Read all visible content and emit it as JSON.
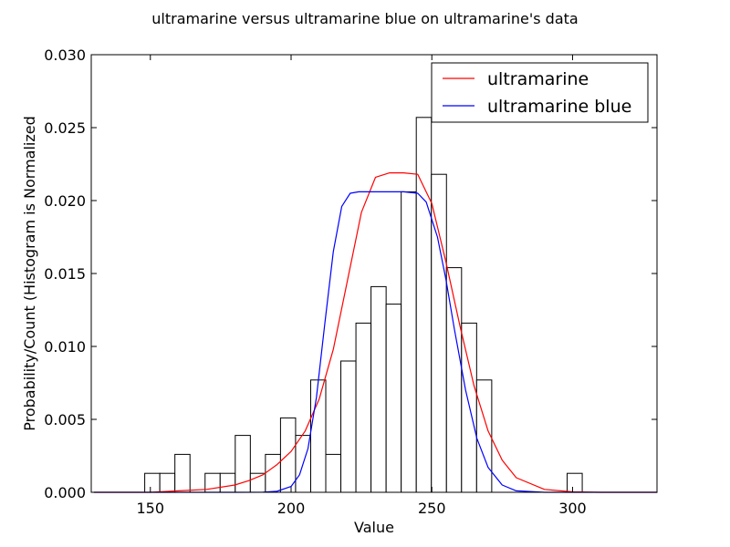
{
  "chart_data": {
    "type": "bar",
    "title": "ultramarine versus ultramarine blue on ultramarine's data",
    "xlabel": "Value",
    "ylabel": "Probability/Count (Histogram is Normalized",
    "xlim": [
      129,
      330
    ],
    "ylim": [
      0,
      0.03
    ],
    "x_ticks": [
      {
        "value": 150,
        "label": "150"
      },
      {
        "value": 200,
        "label": "200"
      },
      {
        "value": 250,
        "label": "250"
      },
      {
        "value": 300,
        "label": "300"
      }
    ],
    "y_ticks": [
      {
        "value": 0.0,
        "label": "0.000"
      },
      {
        "value": 0.005,
        "label": "0.005"
      },
      {
        "value": 0.01,
        "label": "0.010"
      },
      {
        "value": 0.015,
        "label": "0.015"
      },
      {
        "value": 0.02,
        "label": "0.020"
      },
      {
        "value": 0.025,
        "label": "0.025"
      },
      {
        "value": 0.03,
        "label": "0.030"
      }
    ],
    "histogram": {
      "bin_width": 5.36,
      "bin_edges_start": 148,
      "counts": [
        0.0013,
        0.0013,
        0.0026,
        0.0,
        0.0013,
        0.0013,
        0.0039,
        0.0013,
        0.0026,
        0.0051,
        0.0039,
        0.0077,
        0.0026,
        0.009,
        0.0116,
        0.0141,
        0.0129,
        0.0206,
        0.0257,
        0.0218,
        0.0154,
        0.0116,
        0.0077,
        0.0,
        0.0,
        0.0,
        0.0,
        0.0,
        0.0013
      ]
    },
    "series": [
      {
        "name": "ultramarine",
        "color": "#ff0000",
        "x": [
          130,
          150,
          160,
          170,
          180,
          185,
          190,
          195,
          200,
          205,
          210,
          215,
          220,
          225,
          230,
          235,
          240,
          245,
          250,
          255,
          260,
          265,
          270,
          275,
          280,
          290,
          300,
          310,
          320,
          330
        ],
        "y": [
          0.0,
          0.0,
          0.0001,
          0.0002,
          0.0005,
          0.0008,
          0.0012,
          0.0019,
          0.0028,
          0.0042,
          0.0064,
          0.0098,
          0.0145,
          0.0192,
          0.0216,
          0.0219,
          0.0219,
          0.0218,
          0.0198,
          0.0158,
          0.0114,
          0.0073,
          0.0042,
          0.0022,
          0.001,
          0.0002,
          3e-05,
          0.0,
          0.0,
          0.0
        ]
      },
      {
        "name": "ultramarine blue",
        "color": "#0000ff",
        "x": [
          130,
          150,
          170,
          180,
          190,
          195,
          200,
          203,
          206,
          209,
          212,
          215,
          218,
          221,
          224,
          230,
          240,
          245,
          248,
          252,
          255,
          258,
          262,
          266,
          270,
          275,
          280,
          290,
          300,
          330
        ],
        "y": [
          0.0,
          0.0,
          0.0,
          0.0,
          1e-05,
          7e-05,
          0.0004,
          0.0012,
          0.003,
          0.0065,
          0.0116,
          0.0165,
          0.0196,
          0.0205,
          0.0206,
          0.0206,
          0.0206,
          0.0205,
          0.0199,
          0.0175,
          0.0146,
          0.0112,
          0.007,
          0.0037,
          0.0017,
          0.0005,
          0.0001,
          0.0,
          0.0,
          0.0
        ]
      }
    ],
    "legend": {
      "position": "top-right"
    },
    "grid": false
  }
}
